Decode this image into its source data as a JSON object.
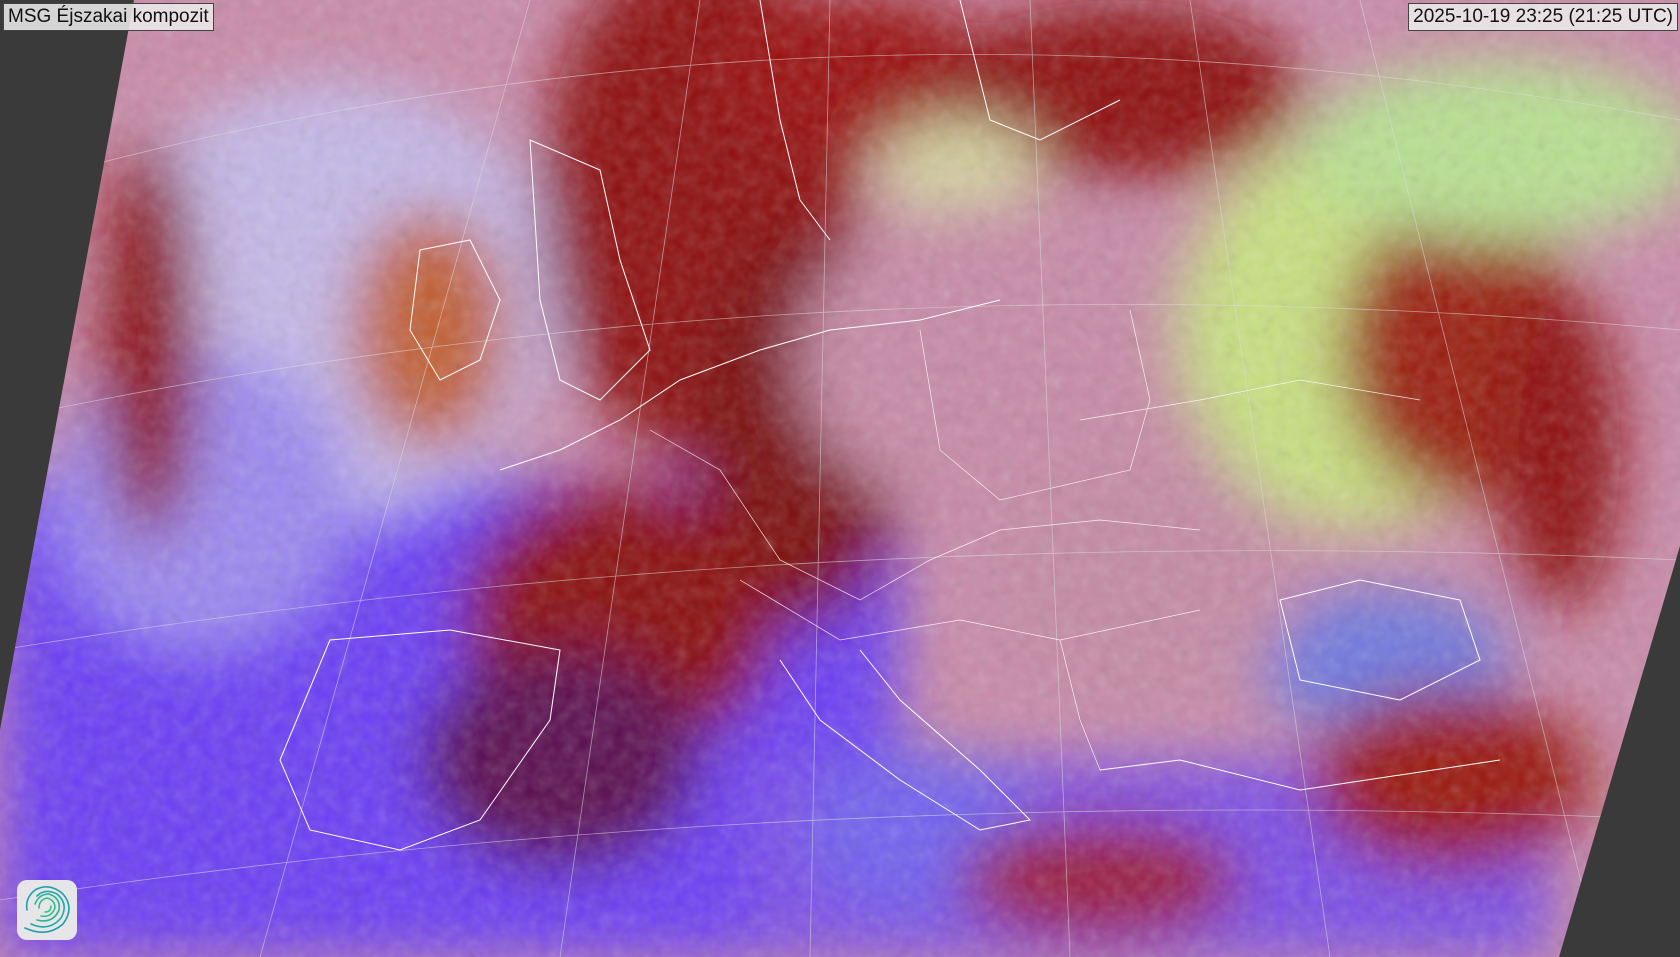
{
  "header": {
    "title": "MSG Éjszakai kompozit",
    "timestamp": "2025-10-19 23:25 (21:25 UTC)"
  },
  "map": {
    "product": "satellite-night-composite",
    "region": "Europe",
    "overlays": [
      "country-borders",
      "coastlines",
      "lat-lon-grid"
    ],
    "background_color": "#3a3a3a",
    "colors": {
      "low_cloud_fog": "#c890a8",
      "high_cloud": "#9b0d0d",
      "sea_clear": "#6a40ff",
      "mid_cloud": "#d8e890"
    }
  },
  "logo": {
    "icon": "swirl-logo-icon"
  }
}
